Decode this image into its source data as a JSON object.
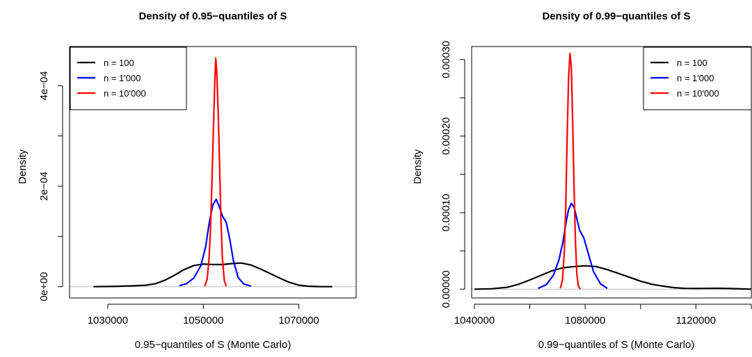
{
  "chart_data": [
    {
      "type": "line",
      "title": "Density of 0.95−quantiles of S",
      "xlabel": "0.95−quantiles of S (Monte Carlo)",
      "ylabel": "Density",
      "xlim": [
        1022000,
        1082000
      ],
      "ylim": [
        -2.25e-05,
        0.000478
      ],
      "x_ticks": [
        1030000,
        1050000,
        1070000
      ],
      "x_tick_labels": [
        "1030000",
        "1050000",
        "1070000"
      ],
      "y_ticks": [
        0,
        0.0001,
        0.0002,
        0.0003,
        0.0004
      ],
      "y_tick_labels": [
        "0e+00",
        "",
        "2e−04",
        "",
        "4e−04"
      ],
      "baseline": 0,
      "legend": {
        "position": "top-left"
      },
      "series": [
        {
          "name": "n = 100",
          "color": "#000000",
          "x": [
            1027000,
            1031000,
            1035000,
            1038000,
            1040000,
            1042000,
            1044000,
            1046000,
            1048000,
            1050000,
            1052000,
            1054000,
            1056000,
            1058000,
            1060000,
            1062000,
            1064000,
            1066000,
            1068000,
            1070000,
            1072000,
            1074000,
            1077000
          ],
          "y": [
            0,
            5e-07,
            1.5e-06,
            3e-06,
            6e-06,
            1.3e-05,
            2.3e-05,
            3.4e-05,
            4.2e-05,
            4.5e-05,
            4.4e-05,
            4.4e-05,
            4.6e-05,
            4.7e-05,
            4.3e-05,
            3.5e-05,
            2.6e-05,
            1.7e-05,
            8.5e-06,
            3e-06,
            9e-07,
            2e-07,
            0
          ]
        },
        {
          "name": "n = 1'000",
          "color": "#0000ff",
          "x": [
            1045000,
            1046500,
            1048000,
            1049500,
            1050500,
            1051200,
            1052000,
            1052700,
            1053300,
            1054000,
            1054800,
            1055500,
            1056300,
            1057300,
            1058500,
            1060000
          ],
          "y": [
            2e-06,
            6e-06,
            1.7e-05,
            4.2e-05,
            8e-05,
            0.000125,
            0.000163,
            0.000174,
            0.00016,
            0.000141,
            0.000128,
            9.7e-05,
            5.2e-05,
            1.8e-05,
            5e-06,
            1e-06
          ]
        },
        {
          "name": "n = 10'000",
          "color": "#ff0000",
          "x": [
            1050300,
            1050800,
            1051200,
            1051500,
            1051800,
            1052100,
            1052400,
            1052600,
            1052800,
            1053100,
            1053400,
            1053700,
            1054000,
            1054400,
            1054800
          ],
          "y": [
            1e-06,
            1.5e-05,
            5.5e-05,
            0.000115,
            0.000205,
            0.00031,
            0.000405,
            0.000455,
            0.00043,
            0.00035,
            0.000245,
            0.00013,
            5.5e-05,
            1.2e-05,
            1e-06
          ]
        }
      ]
    },
    {
      "type": "line",
      "title": "Density of 0.99−quantiles of S",
      "xlabel": "0.99−quantiles of S (Monte Carlo)",
      "ylabel": "Density",
      "xlim": [
        1039000,
        1140000
      ],
      "ylim": [
        -1.15e-05,
        0.000317
      ],
      "x_ticks": [
        1040000,
        1060000,
        1080000,
        1100000,
        1120000,
        1140000
      ],
      "x_tick_labels": [
        "1040000",
        "",
        "1080000",
        "",
        "1120000",
        ""
      ],
      "y_ticks": [
        0,
        5e-05,
        0.0001,
        0.00015,
        0.0002,
        0.00025,
        0.0003
      ],
      "y_tick_labels": [
        "0.00000",
        "",
        "0.00010",
        "",
        "0.00020",
        "",
        "0.00030"
      ],
      "baseline": 0,
      "legend": {
        "position": "top-right"
      },
      "series": [
        {
          "name": "n = 100",
          "color": "#000000",
          "x": [
            1040000,
            1046000,
            1052000,
            1056000,
            1060000,
            1064000,
            1068000,
            1072000,
            1076000,
            1080000,
            1084000,
            1088000,
            1092000,
            1096000,
            1100000,
            1104000,
            1108000,
            1112000,
            1116000,
            1120000,
            1124000,
            1128000,
            1132000,
            1136000,
            1140000
          ],
          "y": [
            0,
            5e-07,
            2.5e-06,
            6.5e-06,
            1.2e-05,
            1.8e-05,
            2.4e-05,
            2.8e-05,
            2.95e-05,
            3.05e-05,
            2.95e-05,
            2.55e-05,
            2.05e-05,
            1.55e-05,
            1.05e-05,
            6.5e-06,
            4e-06,
            2e-06,
            1e-06,
            8e-07,
            1e-06,
            1.1e-06,
            8e-07,
            4e-07,
            0
          ]
        },
        {
          "name": "n = 1'000",
          "color": "#0000ff",
          "x": [
            1063000,
            1066000,
            1068500,
            1070500,
            1072000,
            1073000,
            1074000,
            1075000,
            1076000,
            1077000,
            1078000,
            1079500,
            1081000,
            1083000,
            1085500,
            1088000
          ],
          "y": [
            1e-06,
            6e-06,
            1.8e-05,
            3.8e-05,
            6.2e-05,
            8.5e-05,
            0.000104,
            0.000112,
            0.000107,
            9.2e-05,
            7.7e-05,
            6.7e-05,
            4.8e-05,
            2.3e-05,
            7e-06,
            1e-06
          ]
        },
        {
          "name": "n = 10'000",
          "color": "#ff0000",
          "x": [
            1071000,
            1071800,
            1072500,
            1073000,
            1073500,
            1074000,
            1074500,
            1075000,
            1075500,
            1076000,
            1076500,
            1077000,
            1077500,
            1078200
          ],
          "y": [
            1e-06,
            1.2e-05,
            5e-05,
            0.00011,
            0.0002,
            0.000275,
            0.000308,
            0.00029,
            0.000215,
            0.00013,
            6e-05,
            2e-05,
            5e-06,
            0
          ]
        }
      ]
    }
  ]
}
